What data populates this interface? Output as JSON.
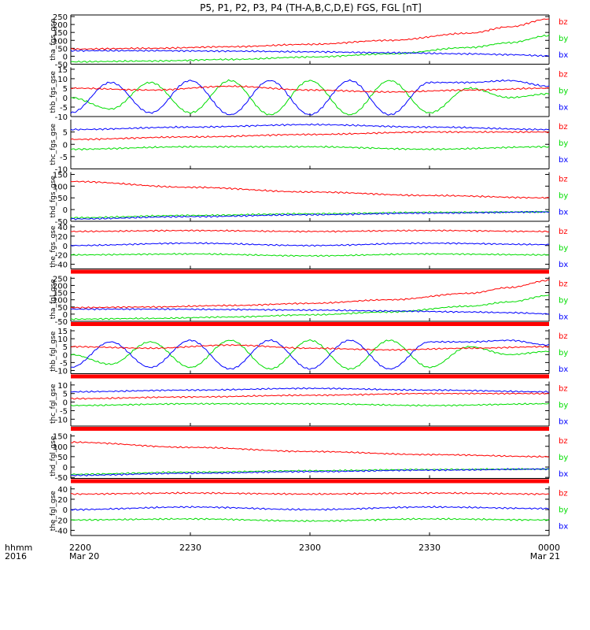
{
  "title": "P5, P1, P2, P3, P4 (TH-A,B,C,D,E) FGS, FGL [nT]",
  "colors": {
    "bx": "#0000ff",
    "by": "#00dd00",
    "bz": "#ff0000",
    "axis": "#000000"
  },
  "chart_data": {
    "type": "line",
    "title": "P5, P1, P2, P3, P4 (TH-A,B,C,D,E) FGS, FGL [nT]",
    "xlabel": "hhmm",
    "xlabel2": "2016",
    "xrange": [
      "2200",
      "0000"
    ],
    "xticks": [
      {
        "value": 0,
        "label": "2200",
        "sub": "Mar 20"
      },
      {
        "value": 30,
        "label": "2230",
        "sub": ""
      },
      {
        "value": 60,
        "label": "2300",
        "sub": ""
      },
      {
        "value": 90,
        "label": "2330",
        "sub": ""
      },
      {
        "value": 120,
        "label": "0000",
        "sub": "Mar 21"
      }
    ],
    "legend": [
      "bz",
      "by",
      "bx"
    ],
    "panels": [
      {
        "ylabel": "tha_fgs_gse",
        "ylim": [
          -50,
          260
        ],
        "yticks": [
          -50,
          0,
          50,
          100,
          150,
          200,
          250
        ],
        "red_bar": false,
        "series": [
          {
            "name": "bz",
            "x": [
              0,
              20,
              40,
              60,
              80,
              100,
              110,
              120
            ],
            "y": [
              45,
              50,
              60,
              75,
              100,
              145,
              185,
              235
            ]
          },
          {
            "name": "by",
            "x": [
              0,
              20,
              40,
              60,
              80,
              100,
              110,
              120
            ],
            "y": [
              -35,
              -30,
              -20,
              -5,
              15,
              55,
              85,
              130
            ]
          },
          {
            "name": "bx",
            "x": [
              0,
              20,
              40,
              60,
              80,
              100,
              110,
              120
            ],
            "y": [
              35,
              35,
              32,
              28,
              22,
              15,
              10,
              2
            ]
          }
        ]
      },
      {
        "ylabel": "thb_fgs_gse",
        "ylim": [
          -10,
          16
        ],
        "yticks": [
          -10,
          -5,
          0,
          5,
          10,
          15
        ],
        "red_bar": false,
        "series": [
          {
            "name": "bz",
            "x": [
              0,
              20,
              40,
              60,
              80,
              100,
              120
            ],
            "y": [
              5,
              4,
              6,
              4,
              3,
              4,
              5
            ]
          },
          {
            "name": "by",
            "x": [
              0,
              10,
              20,
              30,
              40,
              50,
              60,
              70,
              80,
              90,
              100,
              110,
              120
            ],
            "y": [
              0,
              -6,
              8,
              -8,
              9,
              -9,
              9,
              -9,
              9,
              -8,
              5,
              0,
              2
            ]
          },
          {
            "name": "bx",
            "x": [
              0,
              10,
              20,
              30,
              40,
              50,
              60,
              70,
              80,
              90,
              100,
              110,
              120
            ],
            "y": [
              -8,
              8,
              -8,
              9,
              -9,
              9,
              -9,
              9,
              -9,
              8,
              8,
              9,
              6
            ]
          }
        ]
      },
      {
        "ylabel": "thc_fgs_gse",
        "ylim": [
          -10,
          10
        ],
        "yticks": [
          -10,
          -5,
          0,
          5
        ],
        "red_bar": false,
        "series": [
          {
            "name": "bz",
            "x": [
              0,
              30,
              60,
              90,
              120
            ],
            "y": [
              2,
              3,
              4,
              5,
              5
            ]
          },
          {
            "name": "by",
            "x": [
              0,
              30,
              60,
              90,
              120
            ],
            "y": [
              -2,
              -1,
              -1,
              -2,
              -1
            ]
          },
          {
            "name": "bx",
            "x": [
              0,
              30,
              60,
              90,
              120
            ],
            "y": [
              6,
              7,
              8,
              7,
              6
            ]
          }
        ]
      },
      {
        "ylabel": "thd_fgs_gse",
        "ylim": [
          -50,
          160
        ],
        "yticks": [
          -50,
          0,
          50,
          100,
          150
        ],
        "red_bar": false,
        "series": [
          {
            "name": "bz",
            "x": [
              0,
              30,
              60,
              90,
              120
            ],
            "y": [
              120,
              95,
              75,
              60,
              50
            ]
          },
          {
            "name": "by",
            "x": [
              0,
              30,
              60,
              90,
              120
            ],
            "y": [
              -35,
              -25,
              -18,
              -12,
              -10
            ]
          },
          {
            "name": "bx",
            "x": [
              0,
              30,
              60,
              90,
              120
            ],
            "y": [
              -40,
              -30,
              -22,
              -15,
              -10
            ]
          }
        ]
      },
      {
        "ylabel": "the_fgs_gse",
        "ylim": [
          -50,
          45
        ],
        "yticks": [
          -40,
          -20,
          0,
          20,
          40
        ],
        "red_bar": true,
        "series": [
          {
            "name": "bz",
            "x": [
              0,
              30,
              60,
              90,
              120
            ],
            "y": [
              30,
              32,
              30,
              32,
              30
            ]
          },
          {
            "name": "by",
            "x": [
              0,
              30,
              60,
              90,
              120
            ],
            "y": [
              -20,
              -18,
              -22,
              -18,
              -20
            ]
          },
          {
            "name": "bx",
            "x": [
              0,
              30,
              60,
              90,
              120
            ],
            "y": [
              0,
              5,
              0,
              5,
              2
            ]
          }
        ]
      },
      {
        "ylabel": "tha_fgl_gse",
        "ylim": [
          -50,
          260
        ],
        "yticks": [
          -50,
          0,
          50,
          100,
          150,
          200,
          250
        ],
        "red_bar": true,
        "series": [
          {
            "name": "bz",
            "x": [
              0,
              20,
              40,
              60,
              80,
              100,
              110,
              120
            ],
            "y": [
              45,
              50,
              60,
              75,
              100,
              145,
              185,
              235
            ]
          },
          {
            "name": "by",
            "x": [
              0,
              20,
              40,
              60,
              80,
              100,
              110,
              120
            ],
            "y": [
              -35,
              -30,
              -20,
              -5,
              15,
              55,
              85,
              130
            ]
          },
          {
            "name": "bx",
            "x": [
              0,
              20,
              40,
              60,
              80,
              100,
              110,
              120
            ],
            "y": [
              35,
              35,
              32,
              28,
              22,
              15,
              10,
              2
            ]
          }
        ]
      },
      {
        "ylabel": "thb_fgl_gse",
        "ylim": [
          -12,
          16
        ],
        "yticks": [
          -10,
          -5,
          0,
          5,
          10,
          15
        ],
        "red_bar": true,
        "series": [
          {
            "name": "bz",
            "x": [
              0,
              20,
              40,
              60,
              80,
              100,
              120
            ],
            "y": [
              5,
              4,
              6,
              4,
              3,
              4,
              5
            ]
          },
          {
            "name": "by",
            "x": [
              0,
              10,
              20,
              30,
              40,
              50,
              60,
              70,
              80,
              90,
              100,
              110,
              120
            ],
            "y": [
              0,
              -6,
              8,
              -8,
              9,
              -9,
              9,
              -9,
              9,
              -8,
              5,
              0,
              2
            ]
          },
          {
            "name": "bx",
            "x": [
              0,
              10,
              20,
              30,
              40,
              50,
              60,
              70,
              80,
              90,
              100,
              110,
              120
            ],
            "y": [
              -8,
              8,
              -8,
              9,
              -9,
              9,
              -9,
              9,
              -9,
              8,
              8,
              9,
              6
            ]
          }
        ]
      },
      {
        "ylabel": "thc_fgl_gse",
        "ylim": [
          -14,
          12
        ],
        "yticks": [
          -10,
          -5,
          0,
          5,
          10
        ],
        "red_bar": true,
        "series": [
          {
            "name": "bz",
            "x": [
              0,
              30,
              60,
              90,
              120
            ],
            "y": [
              2,
              3,
              4,
              5,
              5
            ]
          },
          {
            "name": "by",
            "x": [
              0,
              30,
              60,
              90,
              120
            ],
            "y": [
              -2,
              -1,
              -1,
              -2,
              -1
            ]
          },
          {
            "name": "bx",
            "x": [
              0,
              30,
              60,
              90,
              120
            ],
            "y": [
              6,
              7,
              8,
              7,
              6
            ]
          }
        ]
      },
      {
        "ylabel": "thd_fgl_gse",
        "ylim": [
          -55,
          160
        ],
        "yticks": [
          -50,
          0,
          50,
          100,
          150
        ],
        "red_bar": true,
        "series": [
          {
            "name": "bz",
            "x": [
              0,
              30,
              60,
              90,
              120
            ],
            "y": [
              120,
              95,
              75,
              60,
              50
            ]
          },
          {
            "name": "by",
            "x": [
              0,
              30,
              60,
              90,
              120
            ],
            "y": [
              -35,
              -25,
              -18,
              -12,
              -10
            ]
          },
          {
            "name": "bx",
            "x": [
              0,
              30,
              60,
              90,
              120
            ],
            "y": [
              -40,
              -30,
              -22,
              -15,
              -10
            ]
          }
        ]
      },
      {
        "ylabel": "the_fgl_gse",
        "ylim": [
          -50,
          45
        ],
        "yticks": [
          -40,
          -20,
          0,
          20,
          40
        ],
        "red_bar": false,
        "series": [
          {
            "name": "bz",
            "x": [
              0,
              30,
              60,
              90,
              120
            ],
            "y": [
              30,
              32,
              30,
              32,
              30
            ]
          },
          {
            "name": "by",
            "x": [
              0,
              30,
              60,
              90,
              120
            ],
            "y": [
              -20,
              -18,
              -22,
              -18,
              -20
            ]
          },
          {
            "name": "bx",
            "x": [
              0,
              30,
              60,
              90,
              120
            ],
            "y": [
              0,
              5,
              0,
              5,
              2
            ]
          }
        ]
      }
    ]
  }
}
